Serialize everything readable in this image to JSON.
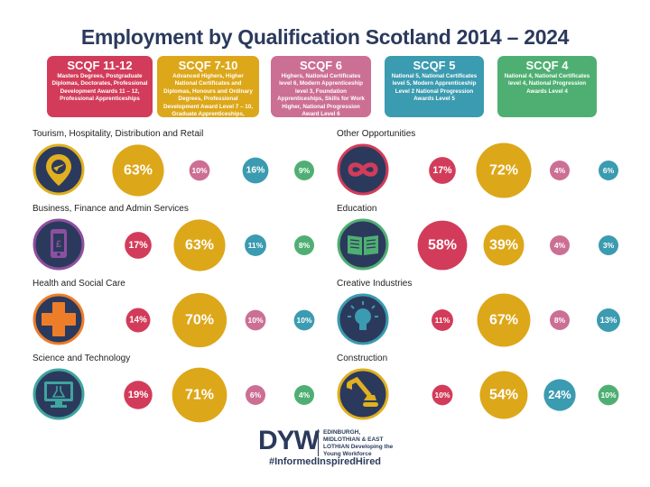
{
  "title": "Employment by Qualification Scotland 2014 – 2024",
  "levels": [
    {
      "key": "scqf11",
      "name": "SCQF 11-12",
      "color": "#d23c5a",
      "description": "Masters Degrees, Postgraduate Diplomas, Doctorates, Professional Development Awards 11 – 12, Professional Apprenticeships"
    },
    {
      "key": "scqf7",
      "name": "SCQF 7-10",
      "color": "#dda71a",
      "description": "Advanced Highers, Higher National Certificates and Diplomas, Honours and Ordinary Degrees, Professional Development Award Level 7 – 10, Graduate Apprenticeships, Modern Apprenticeship Level 5"
    },
    {
      "key": "scqf6",
      "name": "SCQF 6",
      "color": "#cc6f94",
      "description": "Highers, National Certificates level 6, Modern Apprenticeship level 3, Foundation Apprenticeships, Skills for Work Higher, National Progression Award Level 6"
    },
    {
      "key": "scqf5",
      "name": "SCQF 5",
      "color": "#3b9bb0",
      "description": "National 5, National Certificates level 5, Modern Apprenticeship Level 2 National Progression Awards Level 5"
    },
    {
      "key": "scqf4",
      "name": "SCQF 4",
      "color": "#4faf72",
      "description": "National 4, National Certificates level 4, National Progression Awards Level 4"
    }
  ],
  "chart_data": [
    {
      "type": "bubble",
      "title": "Tourism, Hospitality, Distribution and Retail",
      "icon": "location-pin-plane-icon",
      "series": [
        "SCQF 11-12",
        "SCQF 7-10",
        "SCQF 6",
        "SCQF 5",
        "SCQF 4"
      ],
      "values": [
        63,
        10,
        16,
        9
      ],
      "labels": [
        "63%",
        "10%",
        "16%",
        "9%"
      ],
      "colors": [
        "#dda71a",
        "#cc6f94",
        "#3b9bb0",
        "#4faf72"
      ]
    },
    {
      "type": "bubble",
      "title": "Other Opportunities",
      "icon": "infinity-icon",
      "values": [
        17,
        72,
        4,
        6
      ],
      "labels": [
        "17%",
        "72%",
        "4%",
        "6%"
      ],
      "colors": [
        "#d23c5a",
        "#dda71a",
        "#cc6f94",
        "#3b9bb0"
      ]
    },
    {
      "type": "bubble",
      "title": "Business, Finance and Admin Services",
      "icon": "mobile-pound-icon",
      "values": [
        17,
        63,
        11,
        8
      ],
      "labels": [
        "17%",
        "63%",
        "11%",
        "8%"
      ],
      "colors": [
        "#d23c5a",
        "#dda71a",
        "#3b9bb0",
        "#4faf72"
      ]
    },
    {
      "type": "bubble",
      "title": "Education",
      "icon": "open-book-icon",
      "values": [
        58,
        39,
        4,
        3
      ],
      "labels": [
        "58%",
        "39%",
        "4%",
        "3%"
      ],
      "colors": [
        "#d23c5a",
        "#dda71a",
        "#cc6f94",
        "#3b9bb0"
      ]
    },
    {
      "type": "bubble",
      "title": "Health and Social Care",
      "icon": "medical-cross-icon",
      "values": [
        14,
        70,
        10,
        10
      ],
      "labels": [
        "14%",
        "70%",
        "10%",
        "10%"
      ],
      "colors": [
        "#d23c5a",
        "#dda71a",
        "#cc6f94",
        "#3b9bb0"
      ]
    },
    {
      "type": "bubble",
      "title": "Creative Industries",
      "icon": "lightbulb-icon",
      "values": [
        11,
        67,
        8,
        13
      ],
      "labels": [
        "11%",
        "67%",
        "8%",
        "13%"
      ],
      "colors": [
        "#d23c5a",
        "#dda71a",
        "#cc6f94",
        "#3b9bb0"
      ]
    },
    {
      "type": "bubble",
      "title": "Science and Technology",
      "icon": "monitor-flask-icon",
      "values": [
        19,
        71,
        6,
        4
      ],
      "labels": [
        "19%",
        "71%",
        "6%",
        "4%"
      ],
      "colors": [
        "#d23c5a",
        "#dda71a",
        "#cc6f94",
        "#4faf72"
      ]
    },
    {
      "type": "bubble",
      "title": "Construction",
      "icon": "digger-icon",
      "values": [
        10,
        54,
        24,
        10
      ],
      "labels": [
        "10%",
        "54%",
        "24%",
        "10%"
      ],
      "colors": [
        "#d23c5a",
        "#dda71a",
        "#3b9bb0",
        "#4faf72"
      ]
    }
  ],
  "footer": {
    "logo": "DYW",
    "logo_text": "EDINBURGH, MIDLOTHIAN & EAST LOTHIAN Developing the Young Workforce",
    "hashtag": "#InformedInspiredHired"
  }
}
